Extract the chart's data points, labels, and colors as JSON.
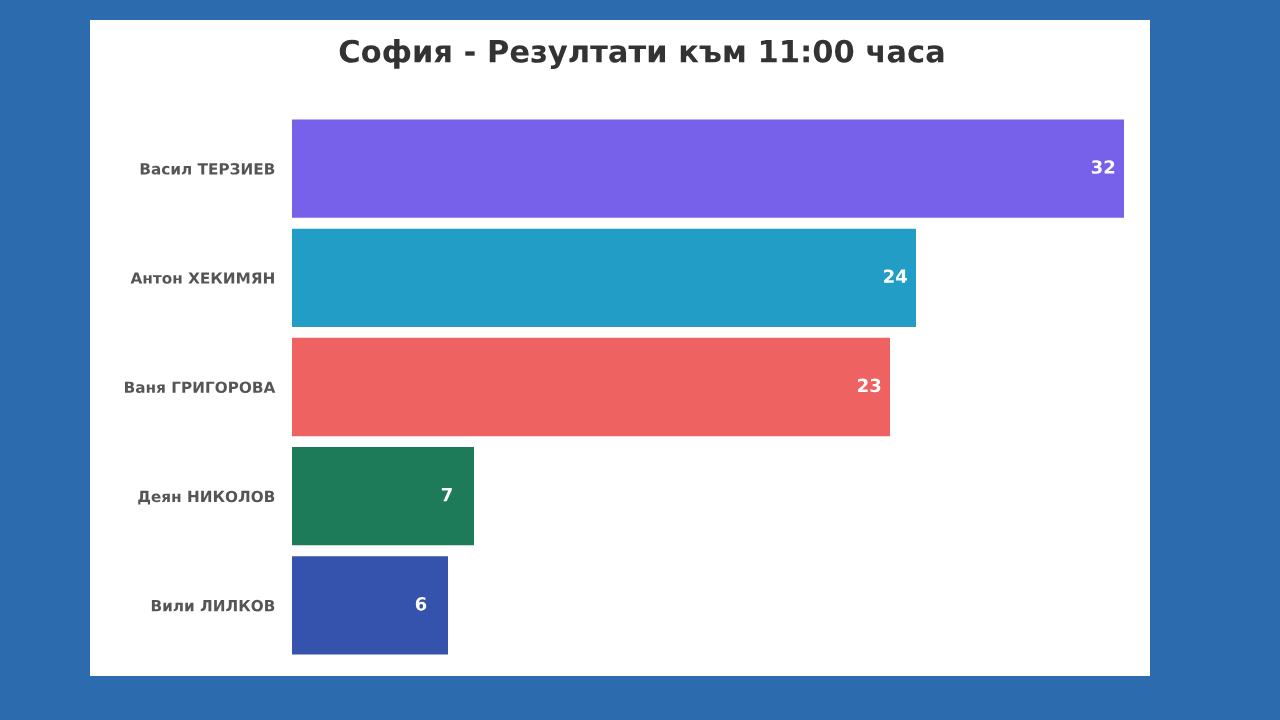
{
  "chart_data": {
    "type": "bar",
    "orientation": "horizontal",
    "title": "София - Резултати към 11:00 часа",
    "categories": [
      "Васил ТЕРЗИЕВ",
      "Антон ХЕКИМЯН",
      "Ваня ГРИГОРОВА",
      "Деян НИКОЛОВ",
      "Вили ЛИЛКОВ"
    ],
    "values": [
      32,
      24,
      23,
      7,
      6
    ],
    "colors": [
      "#7760ea",
      "#229ec6",
      "#ee6262",
      "#1e7b5a",
      "#3553ad"
    ],
    "data_labels": true,
    "legend": false,
    "grid": false
  }
}
